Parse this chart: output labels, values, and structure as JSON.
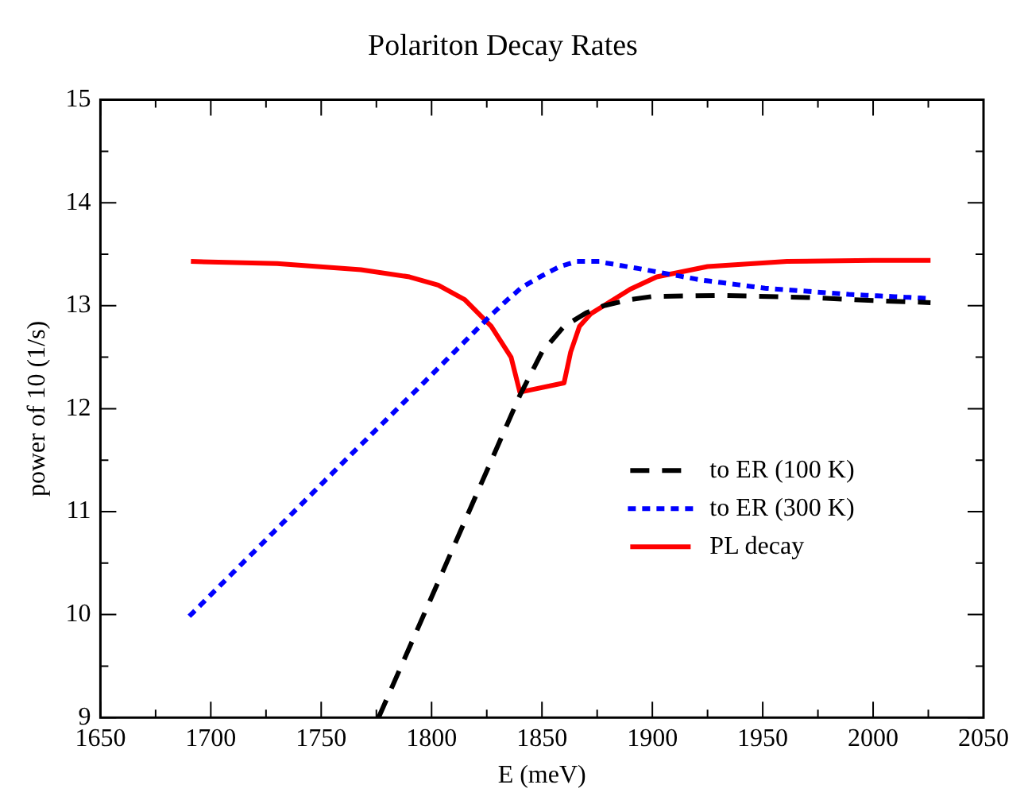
{
  "chart_data": {
    "type": "line",
    "title": "Polariton Decay Rates",
    "xlabel": "E (meV)",
    "ylabel": "power of 10 (1/s)",
    "xlim": [
      1650,
      2050
    ],
    "ylim": [
      9,
      15
    ],
    "xticks": [
      1650,
      {
        "value": 1675,
        "label": null
      },
      1700,
      {
        "value": 1725,
        "label": null
      },
      1750,
      {
        "value": 1775,
        "label": null
      },
      1800,
      {
        "value": 1825,
        "label": null
      },
      1850,
      {
        "value": 1875,
        "label": null
      },
      1900,
      {
        "value": 1925,
        "label": null
      },
      1950,
      {
        "value": 1975,
        "label": null
      },
      2000,
      {
        "value": 2025,
        "label": null
      },
      2050
    ],
    "yticks": [
      9,
      {
        "value": 9.5,
        "label": null
      },
      10,
      {
        "value": 10.5,
        "label": null
      },
      11,
      {
        "value": 11.5,
        "label": null
      },
      12,
      {
        "value": 12.5,
        "label": null
      },
      13,
      {
        "value": 13.5,
        "label": null
      },
      14,
      {
        "value": 14.5,
        "label": null
      },
      15
    ],
    "grid": false,
    "legend": "right",
    "marker": "none",
    "series": [
      {
        "name": "to ER (100 K)",
        "color": "#000000",
        "line_style": "dashed",
        "x": [
          1776,
          1800,
          1820,
          1840,
          1850,
          1860,
          1870,
          1878,
          1890,
          1900,
          1932,
          1970,
          2000,
          2026
        ],
        "values": [
          9.0,
          10.17,
          11.15,
          12.13,
          12.55,
          12.8,
          12.93,
          13.0,
          13.06,
          13.09,
          13.1,
          13.08,
          13.05,
          13.03
        ]
      },
      {
        "name": "to ER (300 K)",
        "color": "#0000ff",
        "line_style": "dotted",
        "x": [
          1691,
          1720,
          1760,
          1794,
          1827,
          1834,
          1841,
          1850,
          1858,
          1866,
          1875,
          1894,
          1922,
          1951,
          1989,
          2026
        ],
        "values": [
          10.0,
          10.62,
          11.48,
          12.2,
          12.91,
          13.05,
          13.18,
          13.29,
          13.38,
          13.43,
          13.43,
          13.36,
          13.25,
          13.17,
          13.11,
          13.07
        ]
      },
      {
        "name": "PL decay",
        "color": "#ff0000",
        "line_style": "solid",
        "x": [
          1691,
          1730,
          1768,
          1790,
          1803,
          1815,
          1827,
          1836,
          1840,
          1860,
          1863,
          1867,
          1872,
          1878,
          1890,
          1902,
          1925,
          1961,
          2000,
          2026
        ],
        "values": [
          13.43,
          13.41,
          13.35,
          13.28,
          13.2,
          13.06,
          12.8,
          12.5,
          12.16,
          12.25,
          12.55,
          12.8,
          12.92,
          13.0,
          13.16,
          13.28,
          13.38,
          13.43,
          13.44,
          13.44
        ]
      }
    ]
  }
}
